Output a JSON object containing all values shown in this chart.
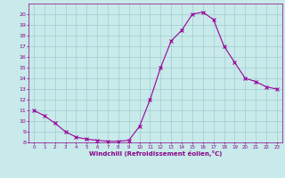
{
  "x": [
    0,
    1,
    2,
    3,
    4,
    5,
    6,
    7,
    8,
    9,
    10,
    11,
    12,
    13,
    14,
    15,
    16,
    17,
    18,
    19,
    20,
    21,
    22,
    23
  ],
  "y": [
    11.0,
    10.5,
    9.8,
    9.0,
    8.5,
    8.3,
    8.2,
    8.1,
    8.1,
    8.2,
    9.5,
    12.0,
    15.0,
    17.5,
    18.5,
    20.0,
    20.2,
    19.5,
    17.0,
    15.5,
    14.0,
    13.7,
    13.2,
    13.0
  ],
  "line_color": "#990099",
  "marker": "x",
  "bg_color": "#c8eaea",
  "grid_color": "#a0cccc",
  "xlabel": "Windchill (Refroidissement éolien,°C)",
  "xlim": [
    -0.5,
    23.5
  ],
  "ylim": [
    8,
    21
  ],
  "yticks": [
    8,
    9,
    10,
    11,
    12,
    13,
    14,
    15,
    16,
    17,
    18,
    19,
    20
  ],
  "xticks": [
    0,
    1,
    2,
    3,
    4,
    5,
    6,
    7,
    8,
    9,
    10,
    11,
    12,
    13,
    14,
    15,
    16,
    17,
    18,
    19,
    20,
    21,
    22,
    23
  ],
  "tick_color": "#880088",
  "label_color": "#880088",
  "spine_color": "#880088"
}
